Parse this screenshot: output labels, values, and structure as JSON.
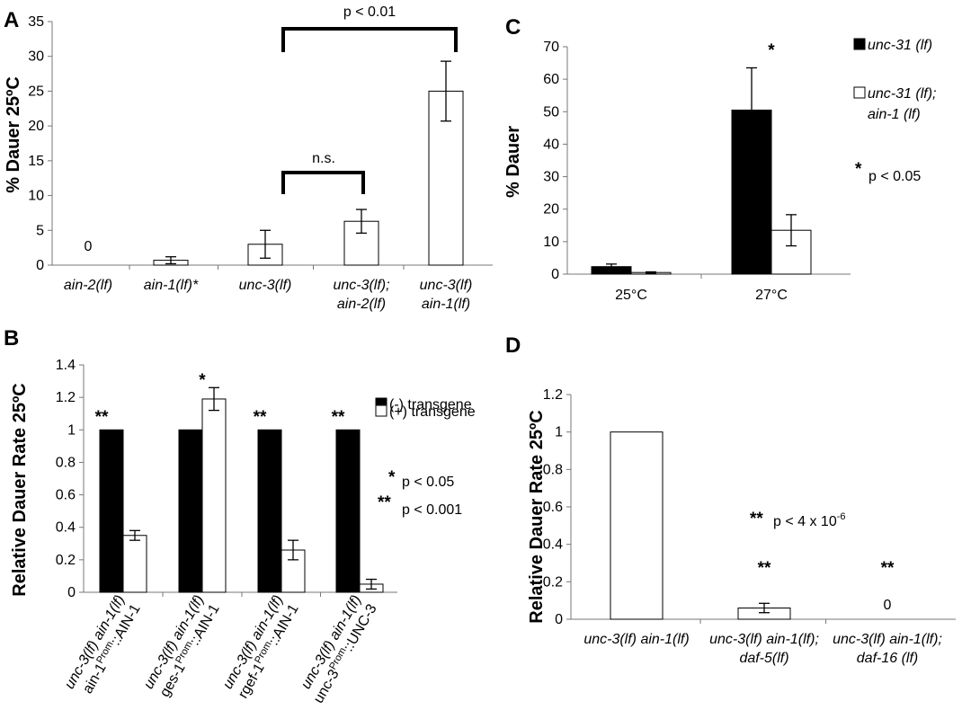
{
  "chart_data": [
    {
      "panel": "A",
      "type": "bar",
      "ylabel": "% Dauer 25ºC",
      "ylim": [
        0,
        35
      ],
      "yticks": [
        "0",
        "5",
        "10",
        "15",
        "20",
        "25",
        "30",
        "35"
      ],
      "categories": [
        [
          "ain-2(lf)"
        ],
        [
          "ain-1(lf)*"
        ],
        [
          "unc-3(lf)"
        ],
        [
          "unc-3(lf);",
          "ain-2(lf)"
        ],
        [
          "unc-3(lf)",
          "ain-1(lf)"
        ]
      ],
      "values": [
        0,
        0.7,
        3.0,
        6.3,
        25.0
      ],
      "errors": [
        0,
        0.5,
        2.0,
        1.7,
        4.3
      ],
      "zero_label": "0",
      "annotations": [
        {
          "from": 3,
          "to": 4,
          "label": "n.s."
        },
        {
          "from": 3,
          "to": 5,
          "label": "p < 0.01"
        }
      ]
    },
    {
      "panel": "B",
      "type": "bar",
      "ylabel": "Relative Dauer Rate 25ºC",
      "ylim": [
        0,
        1.4
      ],
      "yticks": [
        "0",
        "0.2",
        "0.4",
        "0.6",
        "0.8",
        "1",
        "1.2",
        "1.4"
      ],
      "categories": [
        {
          "line1": "unc-3(lf) ain-1(lf)",
          "pre": "ain-1",
          "sup": "Prom",
          "post": "::AIN-1"
        },
        {
          "line1": "unc-3(lf) ain-1(lf)",
          "pre": "ges-1",
          "sup": "Prom",
          "post": "::AIN-1"
        },
        {
          "line1": "unc-3(lf) ain-1(lf)",
          "pre": "rgef-1",
          "sup": "Prom",
          "post": "::AIN-1"
        },
        {
          "line1": "unc-3(lf) ain-1(lf)",
          "pre": "unc-3",
          "sup": "Prom",
          "post": "::UNC-3"
        }
      ],
      "series": [
        {
          "name": "(-) transgene",
          "color": "#000000",
          "values": [
            1,
            1,
            1,
            1
          ],
          "errors": [
            0,
            0,
            0,
            0
          ]
        },
        {
          "name": "(+) transgene",
          "color": "#ffffff",
          "values": [
            0.35,
            1.19,
            0.26,
            0.05
          ],
          "errors": [
            0.03,
            0.07,
            0.06,
            0.03
          ]
        }
      ],
      "sig": [
        "**",
        "*",
        "**",
        "**"
      ],
      "footnotes": [
        {
          "mark": "*",
          "text": "p < 0.05"
        },
        {
          "mark": "**",
          "text": "p < 0.001"
        }
      ]
    },
    {
      "panel": "C",
      "type": "bar",
      "ylabel": "% Dauer",
      "ylim": [
        0,
        70
      ],
      "yticks": [
        "0",
        "10",
        "20",
        "30",
        "40",
        "50",
        "60",
        "70"
      ],
      "categories": [
        "25°C",
        "27°C"
      ],
      "series": [
        {
          "name": "unc-31 (lf)",
          "color": "#000000",
          "values": [
            2.3,
            50.5
          ],
          "errors": [
            0.8,
            13.0
          ]
        },
        {
          "name_lines": [
            "unc-31 (lf);",
            "ain-1 (lf)"
          ],
          "color": "#ffffff",
          "values": [
            0.5,
            13.5
          ],
          "errors": [
            0.2,
            4.8
          ]
        }
      ],
      "sig": [
        "",
        "*"
      ],
      "footnote": {
        "mark": "*",
        "text": "p < 0.05"
      }
    },
    {
      "panel": "D",
      "type": "bar",
      "ylabel": "Relative Dauer Rate 25ºC",
      "ylim": [
        0,
        1.2
      ],
      "yticks": [
        "0",
        "0.2",
        "0.4",
        "0.6",
        "0.8",
        "1",
        "1.2"
      ],
      "categories": [
        [
          "unc-3(lf) ain-1(lf)"
        ],
        [
          "unc-3(lf) ain-1(lf);",
          "daf-5(lf)"
        ],
        [
          "unc-3(lf) ain-1(lf);",
          "daf-16 (lf)"
        ]
      ],
      "values": [
        1,
        0.06,
        0
      ],
      "errors": [
        0,
        0.025,
        0
      ],
      "sig": [
        "",
        "**",
        "**"
      ],
      "zero_label": "0",
      "footnote": {
        "mark": "**",
        "text": "p < 4 x 10",
        "sup": "-6"
      }
    }
  ]
}
